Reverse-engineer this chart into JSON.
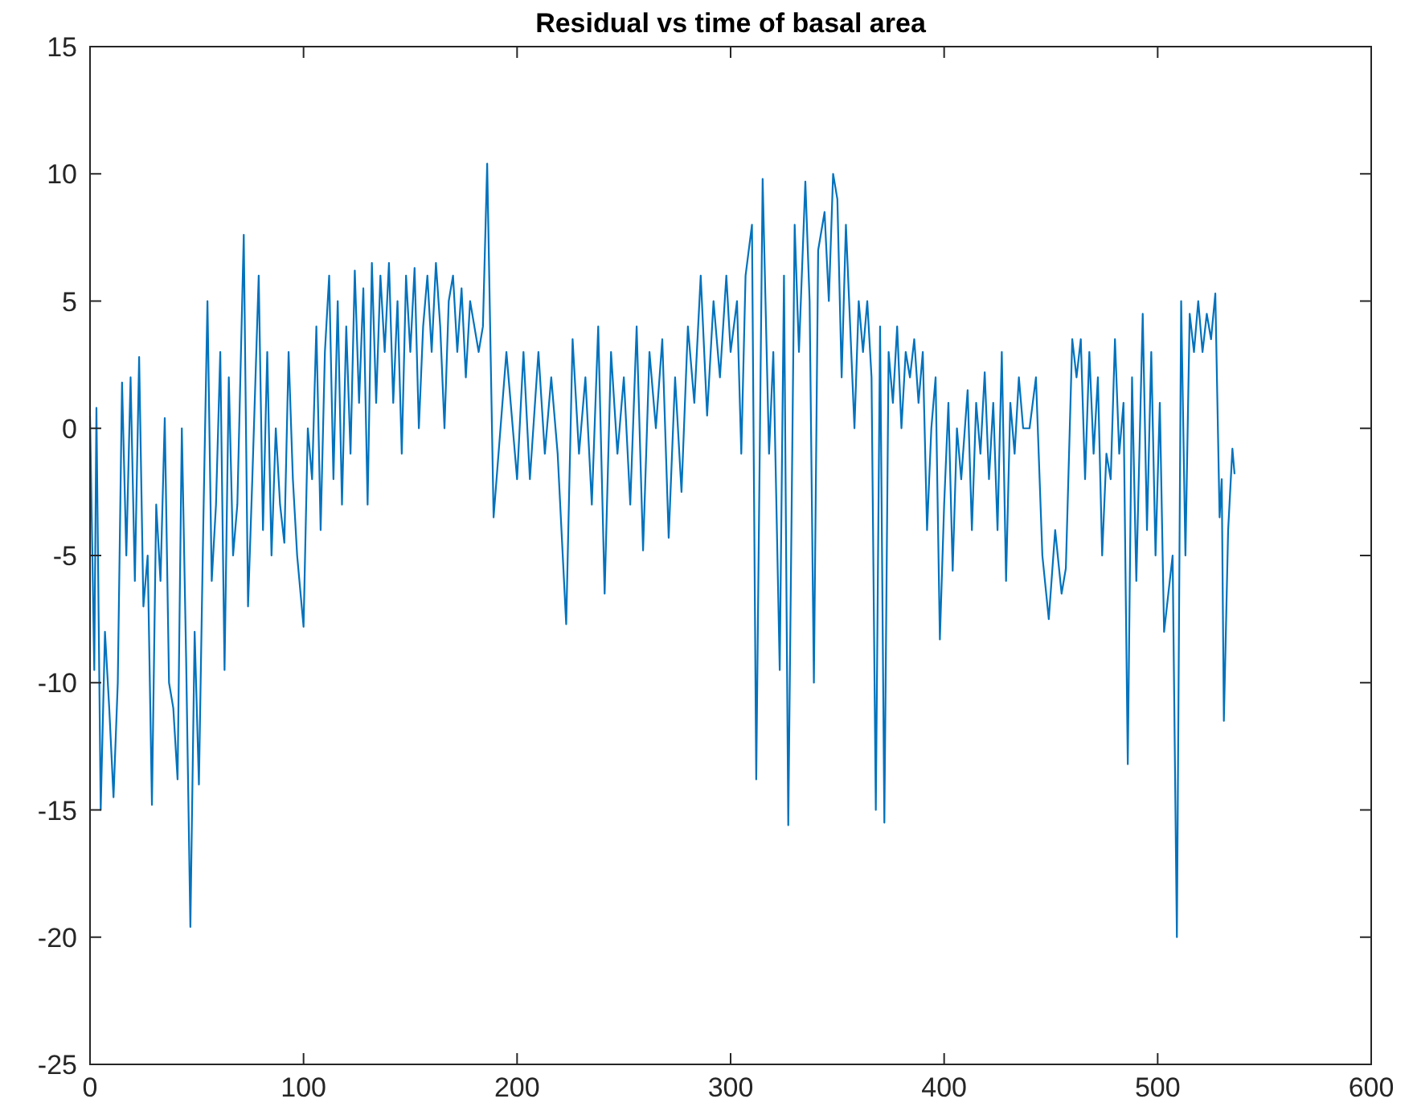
{
  "chart_data": {
    "type": "line",
    "title": "Residual vs time of basal area",
    "xlim": [
      0,
      600
    ],
    "ylim": [
      -25,
      15
    ],
    "xticks": [
      0,
      100,
      200,
      300,
      400,
      500,
      600
    ],
    "yticks": [
      -25,
      -20,
      -15,
      -10,
      -5,
      0,
      5,
      10,
      15
    ],
    "grid": false,
    "series": [
      {
        "color": "#0072bd",
        "x": [
          0,
          2,
          3,
          5,
          7,
          9,
          11,
          13,
          15,
          17,
          19,
          21,
          23,
          25,
          27,
          29,
          31,
          33,
          35,
          37,
          39,
          41,
          43,
          45,
          47,
          49,
          51,
          53,
          55,
          57,
          59,
          61,
          63,
          65,
          67,
          69,
          72,
          74,
          76,
          79,
          81,
          83,
          85,
          87,
          89,
          91,
          93,
          95,
          97,
          100,
          102,
          104,
          106,
          108,
          110,
          112,
          114,
          116,
          118,
          120,
          122,
          124,
          126,
          128,
          130,
          132,
          134,
          136,
          138,
          140,
          142,
          144,
          146,
          148,
          150,
          152,
          154,
          156,
          158,
          160,
          162,
          164,
          166,
          168,
          170,
          172,
          174,
          176,
          178,
          180,
          182,
          184,
          186,
          189,
          195,
          198,
          200,
          203,
          206,
          210,
          213,
          216,
          219,
          223,
          226,
          229,
          232,
          235,
          238,
          241,
          244,
          247,
          250,
          253,
          256,
          259,
          262,
          265,
          268,
          271,
          274,
          277,
          280,
          283,
          286,
          289,
          292,
          295,
          298,
          300,
          303,
          305,
          307,
          310,
          312,
          315,
          318,
          320,
          323,
          325,
          327,
          330,
          332,
          335,
          337,
          339,
          341,
          344,
          346,
          348,
          350,
          352,
          354,
          356,
          358,
          360,
          362,
          364,
          366,
          368,
          370,
          372,
          374,
          376,
          378,
          380,
          382,
          384,
          386,
          388,
          390,
          392,
          394,
          396,
          398,
          400,
          402,
          404,
          406,
          408,
          411,
          413,
          415,
          417,
          419,
          421,
          423,
          425,
          427,
          429,
          431,
          433,
          435,
          437,
          440,
          443,
          446,
          449,
          452,
          455,
          457,
          460,
          462,
          464,
          466,
          468,
          470,
          472,
          474,
          476,
          478,
          480,
          482,
          484,
          486,
          488,
          490,
          493,
          495,
          497,
          499,
          501,
          503,
          505,
          507,
          509,
          511,
          513,
          515,
          517,
          519,
          521,
          523,
          525,
          527,
          529,
          530,
          531,
          533,
          535,
          536
        ],
        "values": [
          0.5,
          -9.5,
          0.8,
          -15,
          -8,
          -11,
          -14.5,
          -10,
          1.8,
          -5,
          2,
          -6,
          2.8,
          -7,
          -5,
          -14.8,
          -3,
          -6,
          0.4,
          -10,
          -11,
          -13.8,
          0,
          -9,
          -19.6,
          -8,
          -14,
          -4,
          5,
          -6,
          -3,
          3,
          -9.5,
          2,
          -5,
          -3,
          7.6,
          -7,
          -2,
          6,
          -4,
          3,
          -5,
          0,
          -3,
          -4.5,
          3,
          -2,
          -5,
          -7.8,
          0,
          -2,
          4,
          -4,
          3,
          6,
          -2,
          5,
          -3,
          4,
          -1,
          6.2,
          1,
          5.5,
          -3,
          6.5,
          1,
          6,
          3,
          6.5,
          1,
          5,
          -1,
          6,
          3,
          6.3,
          0,
          4,
          6,
          3,
          6.5,
          4,
          0,
          5,
          6,
          3,
          5.5,
          2,
          5,
          4,
          3,
          4,
          10.4,
          -3.5,
          3,
          0,
          -2,
          3,
          -2,
          3,
          -1,
          2,
          -1,
          -7.7,
          3.5,
          -1,
          2,
          -3,
          4,
          -6.5,
          3,
          -1,
          2,
          -3,
          4,
          -4.8,
          3,
          0,
          3.5,
          -4.3,
          2,
          -2.5,
          4,
          1,
          6,
          0.5,
          5,
          2,
          6,
          3,
          5,
          -1,
          6,
          8,
          -13.8,
          9.8,
          -1,
          3,
          -9.5,
          6,
          -15.6,
          8,
          3,
          9.7,
          5,
          -10,
          7,
          8.5,
          5,
          10,
          9,
          2,
          8,
          4,
          0,
          5,
          3,
          5,
          2,
          -15,
          4,
          -15.5,
          3,
          1,
          4,
          0,
          3,
          2,
          3.5,
          1,
          3,
          -4,
          0,
          2,
          -8.3,
          -3,
          1,
          -5.6,
          0,
          -2,
          1.5,
          -4,
          1,
          -1,
          2.2,
          -2,
          1,
          -4,
          3,
          -6,
          1,
          -1,
          2,
          0,
          0,
          2,
          -5,
          -7.5,
          -4,
          -6.5,
          -5.5,
          3.5,
          2,
          3.5,
          -2,
          3,
          -1,
          2,
          -5,
          -1,
          -2,
          3.5,
          -1,
          1,
          -13.2,
          2,
          -6,
          4.5,
          -4,
          3,
          -5,
          1,
          -8,
          -6.5,
          -5,
          -20,
          5,
          -5,
          4.5,
          3,
          5,
          3,
          4.5,
          3.5,
          5.3,
          -3.5,
          -2,
          -11.5,
          -4,
          -0.8,
          -1.8
        ]
      }
    ]
  }
}
